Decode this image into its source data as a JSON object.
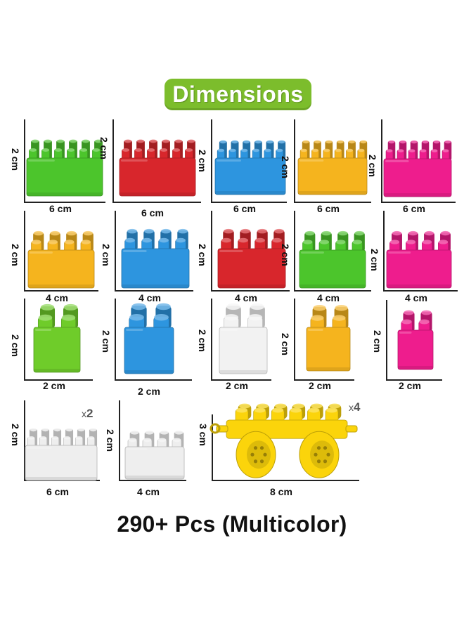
{
  "header": {
    "title": "Dimensions"
  },
  "colors": {
    "green": "#4cc52c",
    "red": "#d8262c",
    "blue": "#2d95df",
    "yellow": "#f5b41e",
    "pink": "#ee1d8d",
    "lime": "#6fcc2a",
    "white": "#f2f2f2",
    "clear": "#eeeeee",
    "yellow_wheel": "#fbd40b"
  },
  "rows": [
    {
      "items": [
        {
          "color": "green",
          "studs": "6x2",
          "height": "2 cm",
          "width": "6 cm"
        },
        {
          "color": "red",
          "studs": "6x2",
          "height": "2 cm",
          "width": "6 cm"
        },
        {
          "color": "blue",
          "studs": "6x2",
          "height": "2 cm",
          "width": "6 cm"
        },
        {
          "color": "yellow",
          "studs": "6x2",
          "height": "2 cm",
          "width": "6 cm"
        },
        {
          "color": "pink",
          "studs": "6x2",
          "height": "2 cm",
          "width": "6 cm"
        }
      ]
    },
    {
      "items": [
        {
          "color": "yellow",
          "studs": "4x2",
          "height": "2 cm",
          "width": "4 cm"
        },
        {
          "color": "blue",
          "studs": "4x2",
          "height": "2 cm",
          "width": "4 cm"
        },
        {
          "color": "red",
          "studs": "4x2",
          "height": "2 cm",
          "width": "4 cm"
        },
        {
          "color": "green",
          "studs": "4x2",
          "height": "2 cm",
          "width": "4 cm"
        },
        {
          "color": "pink",
          "studs": "4x2",
          "height": "2 cm",
          "width": "4 cm"
        }
      ]
    },
    {
      "items": [
        {
          "color": "lime",
          "studs": "2x2",
          "height": "2 cm",
          "width": "2 cm"
        },
        {
          "color": "blue",
          "studs": "2x2",
          "height": "2 cm",
          "width": "2 cm"
        },
        {
          "color": "white",
          "studs": "2x2",
          "height": "2 cm",
          "width": "2 cm"
        },
        {
          "color": "yellow",
          "studs": "2x2",
          "height": "2 cm",
          "width": "2 cm"
        },
        {
          "color": "pink",
          "studs": "2x2",
          "height": "2 cm",
          "width": "2 cm"
        }
      ]
    },
    {
      "items": [
        {
          "color": "clear",
          "studs": "6x2",
          "height": "2 cm",
          "width": "6 cm",
          "multiplier": "2"
        },
        {
          "color": "clear",
          "studs": "4x2",
          "height": "2 cm",
          "width": "4 cm"
        },
        {
          "color": "yellow_wheel",
          "studs": "car",
          "height": "3 cm",
          "width": "8 cm",
          "multiplier": "4"
        }
      ]
    }
  ],
  "multiplier_prefix": "x",
  "footer": {
    "text": "290+ Pcs (Multicolor)"
  }
}
